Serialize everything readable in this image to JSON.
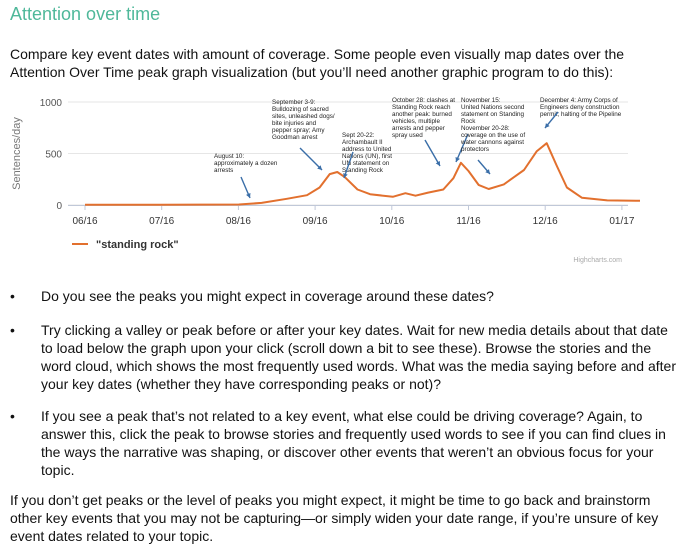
{
  "heading": "Attention over time",
  "intro": "Compare key event dates with amount of coverage. Some people even visually map dates over the Attention Over Time peak graph visualization (but you’ll need another graphic program to do this):",
  "chart_data": {
    "type": "line",
    "ylabel": "Sentences/day",
    "ylim": [
      0,
      1000
    ],
    "yticks": [
      0,
      500,
      1000
    ],
    "x_tick_labels": [
      "06/16",
      "07/16",
      "08/16",
      "09/16",
      "10/16",
      "11/16",
      "12/16",
      "01/17"
    ],
    "series": [
      {
        "name": "\"standing rock\"",
        "color": "#e2702e",
        "points": [
          [
            "2016-06-01",
            3
          ],
          [
            "2016-07-01",
            3
          ],
          [
            "2016-08-01",
            5
          ],
          [
            "2016-08-10",
            20
          ],
          [
            "2016-08-20",
            60
          ],
          [
            "2016-08-28",
            95
          ],
          [
            "2016-09-02",
            170
          ],
          [
            "2016-09-06",
            300
          ],
          [
            "2016-09-09",
            320
          ],
          [
            "2016-09-12",
            270
          ],
          [
            "2016-09-17",
            150
          ],
          [
            "2016-09-22",
            105
          ],
          [
            "2016-10-01",
            80
          ],
          [
            "2016-10-06",
            115
          ],
          [
            "2016-10-10",
            90
          ],
          [
            "2016-10-15",
            120
          ],
          [
            "2016-10-21",
            150
          ],
          [
            "2016-10-25",
            260
          ],
          [
            "2016-10-28",
            410
          ],
          [
            "2016-10-31",
            330
          ],
          [
            "2016-11-04",
            195
          ],
          [
            "2016-11-08",
            155
          ],
          [
            "2016-11-14",
            200
          ],
          [
            "2016-11-18",
            270
          ],
          [
            "2016-11-22",
            340
          ],
          [
            "2016-11-27",
            520
          ],
          [
            "2016-12-01",
            600
          ],
          [
            "2016-12-05",
            380
          ],
          [
            "2016-12-09",
            170
          ],
          [
            "2016-12-15",
            70
          ],
          [
            "2016-12-25",
            45
          ],
          [
            "2017-01-10",
            40
          ]
        ]
      }
    ],
    "annotations": [
      {
        "lines": [
          "August 10:",
          "approximately a dozen",
          "arrests"
        ]
      },
      {
        "lines": [
          "September 3-9:",
          "Bulldozing of sacred",
          "sites, unleashed dogs/",
          "bite injuries and",
          "pepper spray; Amy",
          "Goodman arrest"
        ]
      },
      {
        "lines": [
          "Sept 20-22:",
          "Archambault II",
          "address to United",
          "Nations (UN), first",
          "UN statement on",
          "Standing Rock"
        ]
      },
      {
        "lines": [
          "October 28: clashes at",
          "Standing Rock reach",
          "another peak: burned",
          "vehicles, multiple",
          "arrests and pepper",
          "spray used"
        ]
      },
      {
        "lines": [
          "November 15:",
          "United Nations second",
          "statement on Standing",
          "Rock"
        ]
      },
      {
        "lines": [
          "November 20-28:",
          "coverage on the use of",
          "water cannons against",
          "protectors"
        ]
      },
      {
        "lines": [
          "December 4: Army Corps of",
          "Engineers deny construction",
          "permit; halting of the Pipeline"
        ]
      }
    ],
    "legend_position": "bottom-left",
    "credit": "Highcharts.com"
  },
  "bullets": [
    "Do you see the peaks you might expect in coverage around these dates?",
    "Try clicking a valley or peak before or after your key dates. Wait for new media details about that date to load below the graph upon your click (scroll down a bit to see these). Browse the stories and the word cloud, which shows the most frequently used words. What was the media saying before and after your key dates (whether they have corresponding peaks or not)?",
    "If you see a peak that’s not related to a key event, what else could be driving coverage? Again, to answer this, click the peak to browse stories and frequently used words to see if you can find clues in the ways the narrative was shaping, or discover other events that weren’t an obvious focus for your topic."
  ],
  "bullet_symbol": "•",
  "outro": "If you don’t get peaks or the level of peaks you might expect, it might be time to go back and brainstorm other key events that you may not be capturing—or simply widen your date range, if you’re unsure of key event dates related to your topic."
}
